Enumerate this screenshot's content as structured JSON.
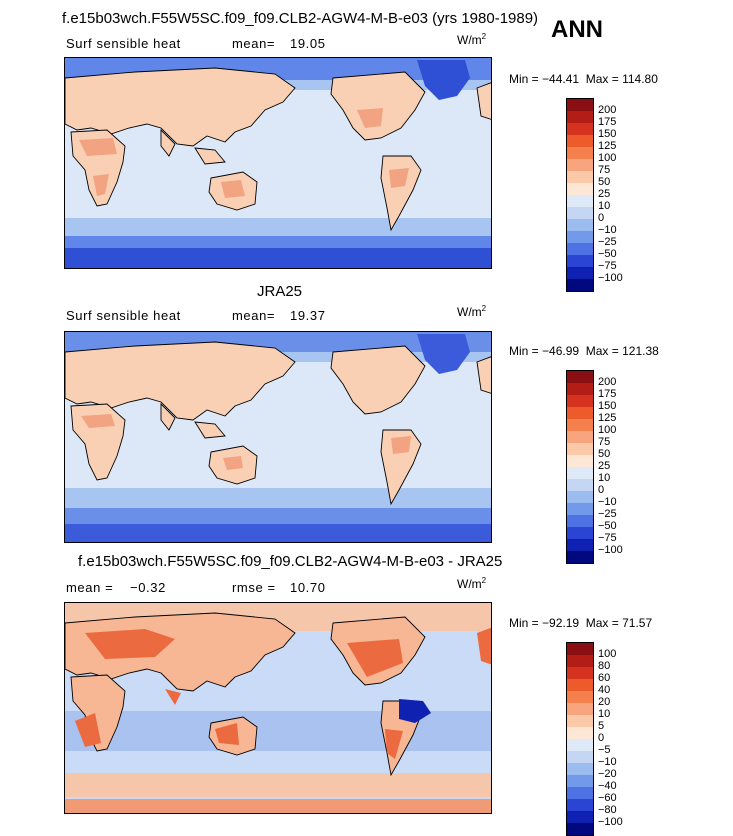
{
  "season": "ANN",
  "panels": [
    {
      "title": "f.e15b03wch.F55W5SC.f09_f09.CLB2-AGW4-M-B-e03 (yrs 1980-1989)",
      "left_label": "Surf sensible heat",
      "stat_label": "mean=",
      "stat_value": "19.05",
      "units_base": "W/m",
      "units_exp": "2",
      "min_label": "Min = ",
      "min_value": "−44.41",
      "max_label": "Max = ",
      "max_value": "114.80",
      "colorbar": {
        "labels": [
          "200",
          "175",
          "150",
          "125",
          "100",
          "75",
          "50",
          "25",
          "10",
          "0",
          "−10",
          "−25",
          "−50",
          "−75",
          "−100"
        ],
        "colors": [
          "#8a0f12",
          "#b21d16",
          "#d63220",
          "#ed5a2b",
          "#f4804e",
          "#f8a47d",
          "#fbc8a8",
          "#fde6d4",
          "#dfeaf8",
          "#c4d6f4",
          "#9cbcef",
          "#7399ea",
          "#4e72e3",
          "#2a45d4",
          "#0f21b0",
          "#00087e"
        ]
      },
      "map": {
        "ocean": "#dce8f7",
        "land": "#f9d0b4",
        "land_hot": "#f2a381",
        "polar": "#5f86e8",
        "polar_deep": "#2f4fd5",
        "storm": "#a8c4f1"
      }
    },
    {
      "title": "JRA25",
      "left_label": "Surf sensible heat",
      "stat_label": "mean=",
      "stat_value": "19.37",
      "units_base": "W/m",
      "units_exp": "2",
      "min_label": "Min = ",
      "min_value": "−46.99",
      "max_label": "Max = ",
      "max_value": "121.38",
      "colorbar": {
        "labels": [
          "200",
          "175",
          "150",
          "125",
          "100",
          "75",
          "50",
          "25",
          "10",
          "0",
          "−10",
          "−25",
          "−50",
          "−75",
          "−100"
        ],
        "colors": [
          "#8a0f12",
          "#b21d16",
          "#d63220",
          "#ed5a2b",
          "#f4804e",
          "#f8a47d",
          "#fbc8a8",
          "#fde6d4",
          "#dfeaf8",
          "#c4d6f4",
          "#9cbcef",
          "#7399ea",
          "#4e72e3",
          "#2a45d4",
          "#0f21b0",
          "#00087e"
        ]
      },
      "map": {
        "ocean": "#dce8f7",
        "land": "#f9d0b4",
        "land_hot": "#f2a381",
        "polar": "#6a8fe9",
        "polar_deep": "#3b5bda",
        "storm": "#a8c4f1"
      }
    },
    {
      "title": "f.e15b03wch.F55W5SC.f09_f09.CLB2-AGW4-M-B-e03 - JRA25",
      "left_label": "mean =",
      "left_value": "−0.32",
      "stat_label": "rmse =",
      "stat_value": "10.70",
      "units_base": "W/m",
      "units_exp": "2",
      "min_label": "Min = ",
      "min_value": "−92.19",
      "max_label": "Max = ",
      "max_value": "71.57",
      "colorbar": {
        "labels": [
          "100",
          "80",
          "60",
          "40",
          "20",
          "10",
          "5",
          "0",
          "−5",
          "−10",
          "−20",
          "−40",
          "−60",
          "−80",
          "−100"
        ],
        "colors": [
          "#8a0f12",
          "#b21d16",
          "#d63220",
          "#ed5a2b",
          "#f4804e",
          "#f8a47d",
          "#fbc8a8",
          "#fde6d4",
          "#dfeaf8",
          "#c4d6f4",
          "#9cbcef",
          "#7399ea",
          "#4e72e3",
          "#2a45d4",
          "#0f21b0",
          "#00087e"
        ]
      },
      "map": {
        "ocean": "#c9dbf6",
        "land": "#f7b694",
        "land_hot": "#ec6a3f",
        "polar": "#f5c6aa",
        "polar_deep": "#f09a76",
        "storm": "#a9c2f0"
      }
    }
  ]
}
